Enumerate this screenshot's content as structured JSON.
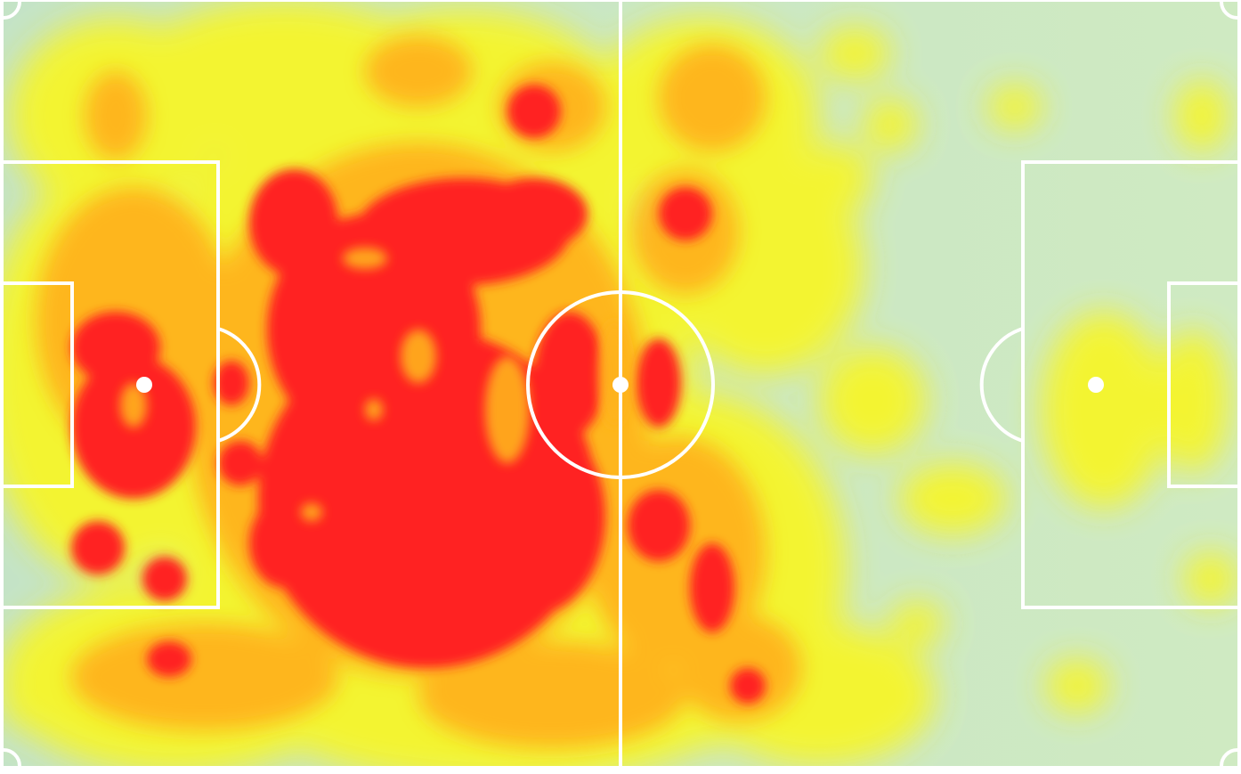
{
  "colors": {
    "pitch": "#c9e7c4",
    "pitch_edge": "#bfe0c4",
    "lines": "#ffffff",
    "heat_low": "#f6f52a",
    "heat_mid": "#ffb31a",
    "heat_high": "#ff2020"
  },
  "heatmap": {
    "type": "heatmap",
    "description_visible": false,
    "intensity_scale": [
      "low",
      "medium",
      "high"
    ]
  }
}
